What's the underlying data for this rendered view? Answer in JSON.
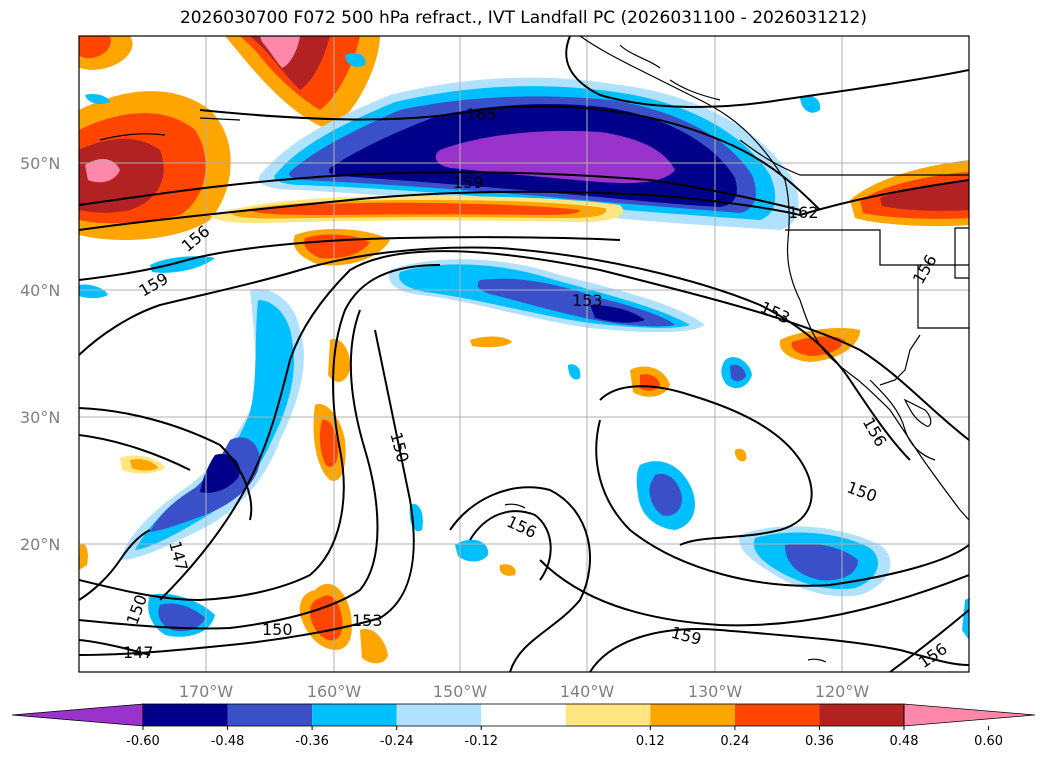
{
  "title": "2026030700 F072 500 hPa refract., IVT Landfall PC (2026031100 - 2026031212)",
  "lat_labels": [
    "50°N",
    "40°N",
    "30°N",
    "20°N"
  ],
  "lon_labels": [
    "170°W",
    "160°W",
    "150°W",
    "140°W",
    "130°W",
    "120°W"
  ],
  "contour_labels": [
    "165",
    "159",
    "162",
    "156",
    "159",
    "153",
    "153",
    "156",
    "150",
    "156",
    "150",
    "156",
    "147",
    "150",
    "150",
    "153",
    "159",
    "147",
    "156"
  ],
  "colorbar": {
    "ticks": [
      "-0.60",
      "-0.48",
      "-0.36",
      "-0.24",
      "-0.12",
      "0.12",
      "0.24",
      "0.36",
      "0.48",
      "0.60"
    ],
    "colors": [
      "#9933cc",
      "#00008b",
      "#3a50c8",
      "#00bfff",
      "#b0e2ff",
      "#ffffff",
      "#ffe680",
      "#ffa500",
      "#ff4500",
      "#b22222",
      "#ff88aa"
    ]
  },
  "palette": {
    "neg_extreme": "#9933cc",
    "neg_strong": "#00008b",
    "neg_mid": "#3a50c8",
    "neg_light": "#00bfff",
    "neg_faint": "#b0e2ff",
    "pos_faint": "#ffe680",
    "pos_light": "#ffa500",
    "pos_mid": "#ff4500",
    "pos_strong": "#b22222",
    "pos_extreme": "#ff88aa"
  }
}
